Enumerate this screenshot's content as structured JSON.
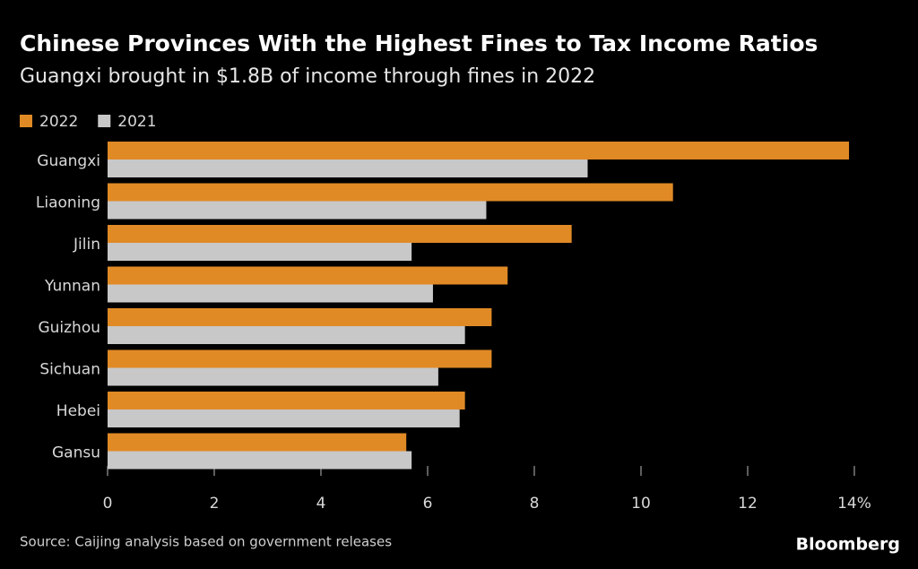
{
  "chart_data": {
    "type": "hbar",
    "title": "Chinese Provinces With the Highest Fines to Tax Income Ratios",
    "subtitle": "Guangxi brought in $1.8B of income through fines in 2022",
    "categories": [
      "Guangxi",
      "Liaoning",
      "Jilin",
      "Yunnan",
      "Guizhou",
      "Sichuan",
      "Hebei",
      "Gansu"
    ],
    "series": [
      {
        "name": "2022",
        "color": "#e08a26",
        "values": [
          13.9,
          10.6,
          8.7,
          7.5,
          7.2,
          7.2,
          6.7,
          5.6
        ]
      },
      {
        "name": "2021",
        "color": "#c8c8c8",
        "values": [
          9.0,
          7.1,
          5.7,
          6.1,
          6.7,
          6.2,
          6.6,
          5.7
        ]
      }
    ],
    "xlim": [
      0,
      14
    ],
    "xticks": [
      0,
      2,
      4,
      6,
      8,
      10,
      12,
      {
        "value": 14,
        "label": "14%"
      }
    ],
    "legend": "top-left",
    "source": "Source: Caijing analysis based on government releases",
    "logo": "Bloomberg"
  }
}
